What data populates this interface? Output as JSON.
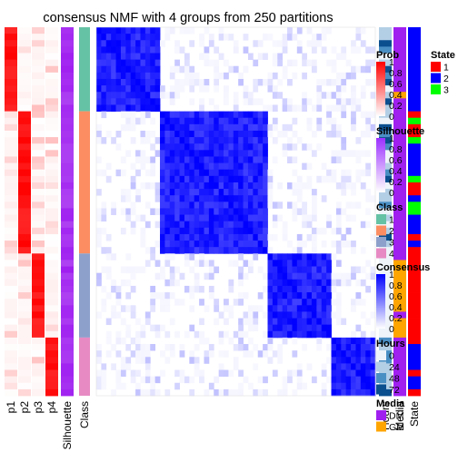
{
  "chart_data": {
    "type": "heatmap",
    "title": "consensus NMF with 4 groups from 250 partitions",
    "groups": [
      {
        "class": "1",
        "size": 13
      },
      {
        "class": "2",
        "size": 22
      },
      {
        "class": "3",
        "size": 13
      },
      {
        "class": "4",
        "size": 9
      }
    ],
    "prob_columns": [
      "p1",
      "p2",
      "p3",
      "p4"
    ],
    "left_annotation_labels": [
      "Silhouette",
      "Class"
    ],
    "right_annotation_labels": [
      "Hours",
      "Media",
      "State"
    ],
    "legends": [
      {
        "title": "Prob",
        "type": "continuous",
        "ticks": [
          "1",
          "0.8",
          "0.6",
          "0.4",
          "0.2",
          "0"
        ],
        "colors": [
          "#ff0000",
          "#ffffff"
        ]
      },
      {
        "title": "Silhouette",
        "type": "continuous",
        "ticks": [
          "1",
          "0.8",
          "0.6",
          "0.4",
          "0.2",
          "0"
        ],
        "colors": [
          "#9b30ff",
          "#ffffff"
        ]
      },
      {
        "title": "Class",
        "type": "discrete",
        "items": [
          {
            "label": "1",
            "color": "#66c2a5"
          },
          {
            "label": "2",
            "color": "#fc8d62"
          },
          {
            "label": "3",
            "color": "#8da0cb"
          },
          {
            "label": "4",
            "color": "#e78ac3"
          }
        ]
      },
      {
        "title": "Consensus",
        "type": "continuous",
        "ticks": [
          "1",
          "0.8",
          "0.6",
          "0.4",
          "0.2",
          "0"
        ],
        "colors": [
          "#0000ff",
          "#ffffff"
        ]
      },
      {
        "title": "Hours",
        "type": "discrete",
        "items": [
          {
            "label": "0",
            "color": "#eef4fa"
          },
          {
            "label": "24",
            "color": "#b3cfe6"
          },
          {
            "label": "48",
            "color": "#4a8fc4"
          },
          {
            "label": "72",
            "color": "#0b4f8f"
          }
        ]
      },
      {
        "title": "Media",
        "type": "discrete",
        "items": [
          {
            "label": "DM",
            "color": "#a020f0"
          },
          {
            "label": "GM",
            "color": "#ffa500"
          }
        ]
      }
    ],
    "state_legend": {
      "title": "State",
      "items": [
        {
          "label": "1",
          "color": "#ff0000"
        },
        {
          "label": "2",
          "color": "#0000ff"
        },
        {
          "label": "3",
          "color": "#00ff00"
        }
      ]
    },
    "colors": {
      "prob": "#ff0000",
      "consensus": "#0000ff",
      "silhouette": "#a020f0"
    }
  }
}
